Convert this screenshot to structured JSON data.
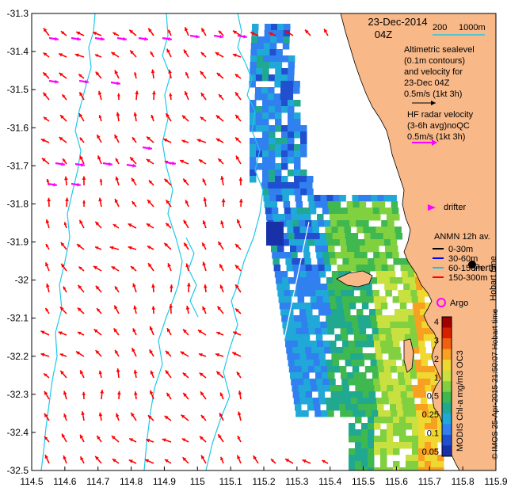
{
  "header": {
    "date": "23-Dec-2014",
    "time": "04Z",
    "depth_legend_200": "200",
    "depth_legend_1000": "1000m"
  },
  "legend": {
    "altimetric_lines": [
      "Altimetric sealevel",
      "(0.1m contours)",
      "and velocity for",
      "23-Dec 04Z",
      "0.5m/s (1kt 3h)"
    ],
    "hf_lines": [
      "HF radar velocity",
      "(3-6h avg)noQC",
      "0.5m/s (1kt 3h)"
    ],
    "drifter_label": "drifter",
    "anmn_title": "ANMN 12h av.",
    "anmn_items": [
      {
        "label": "0-30m",
        "color": "#000000"
      },
      {
        "label": "30-60m",
        "color": "#0000ff"
      },
      {
        "label": "60-150m",
        "color": "#00c8ff"
      },
      {
        "label": "150-300m",
        "color": "#ff0000"
      }
    ],
    "argo_label": "Argo",
    "perth_label": "Perth",
    "hobart_text": "Hobart time"
  },
  "colorbar": {
    "ticks": [
      "4",
      "3",
      "2",
      "1",
      "0.5",
      "0.25",
      "0.1",
      "0.05"
    ],
    "title": "MODIS Chl-a mg/m3 OC3",
    "colors": [
      "#a00000",
      "#d82000",
      "#f06010",
      "#f8a020",
      "#f0d830",
      "#c8e040",
      "#80d040",
      "#40b850",
      "#20a890",
      "#20a8d8",
      "#3080f0",
      "#2050d0",
      "#1830a8"
    ]
  },
  "credit": {
    "text": "© IMOS 25-Apr-2015 21:50:07 Hobart time"
  },
  "axes": {
    "x_ticks": [
      "114.5",
      "114.6",
      "114.7",
      "114.8",
      "114.9",
      "115",
      "115.1",
      "115.2",
      "115.3",
      "115.4",
      "115.5",
      "115.6",
      "115.7",
      "115.8",
      "115.9"
    ],
    "y_ticks": [
      "-31.3",
      "-31.4",
      "-31.5",
      "-31.6",
      "-31.7",
      "-31.8",
      "-31.9",
      "-32",
      "-32.1",
      "-32.2",
      "-32.3",
      "-32.4",
      "-32.5"
    ],
    "x_range": [
      114.5,
      115.9
    ],
    "y_range": [
      -32.5,
      -31.3
    ]
  },
  "colors": {
    "land": "#f8b888",
    "isobath": "#20c8e8",
    "altimetry_arrow": "#ff0000",
    "hf_arrow": "#ff00ff",
    "drifter": "#ff00ff",
    "argo": "#ff00ff"
  }
}
